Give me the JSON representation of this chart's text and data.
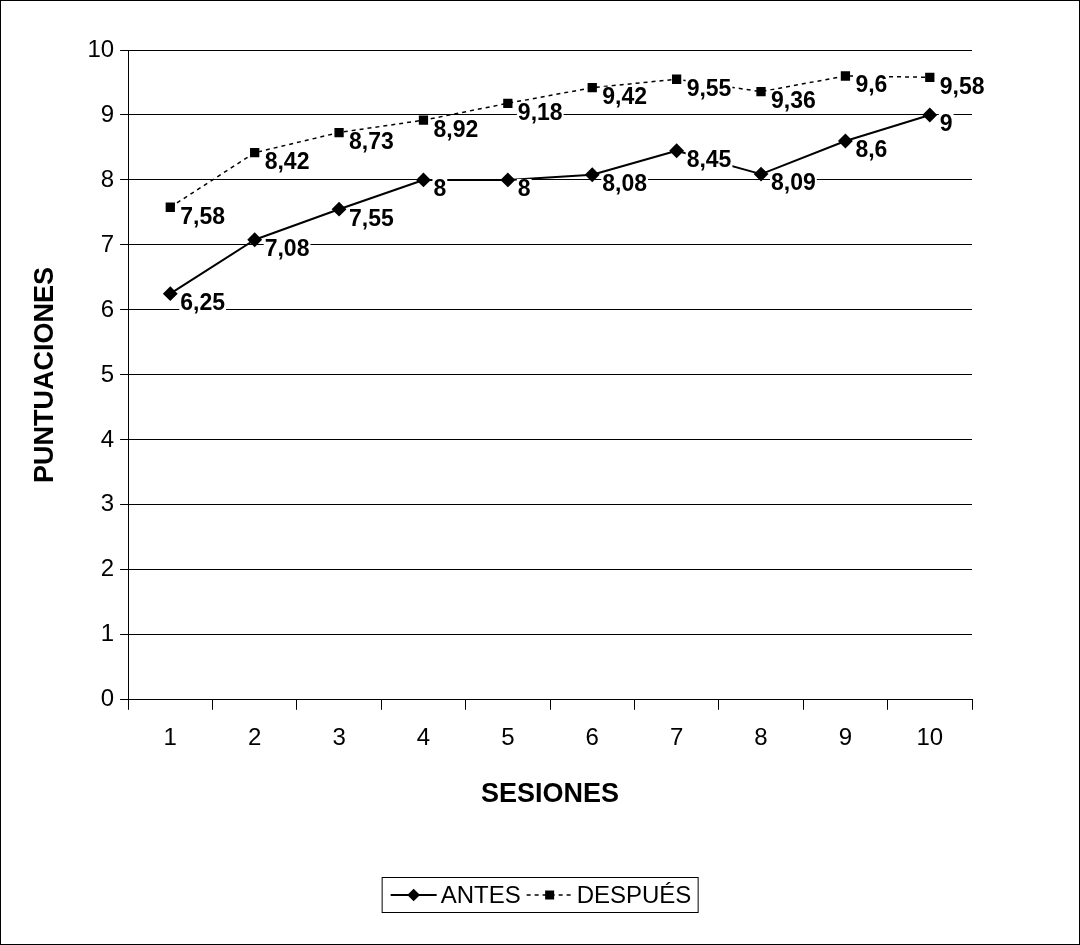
{
  "chart_data": {
    "type": "line",
    "xlabel": "SESIONES",
    "ylabel": "PUNTUACIONES",
    "categories": [
      "1",
      "2",
      "3",
      "4",
      "5",
      "6",
      "7",
      "8",
      "9",
      "10"
    ],
    "ylim": [
      0,
      10
    ],
    "yticks": [
      0,
      1,
      2,
      3,
      4,
      5,
      6,
      7,
      8,
      9,
      10
    ],
    "grid": "y",
    "legend": "bottom",
    "series": [
      {
        "name": "ANTES",
        "color": "#000000",
        "marker": "diamond",
        "line_style": "solid",
        "values": [
          6.25,
          7.08,
          7.55,
          8,
          8,
          8.08,
          8.45,
          8.09,
          8.6,
          9
        ],
        "value_labels": [
          "6,25",
          "7,08",
          "7,55",
          "8",
          "8",
          "8,08",
          "8,45",
          "8,09",
          "8,6",
          "9"
        ]
      },
      {
        "name": "DESPUÉS",
        "color": "#000000",
        "marker": "square",
        "line_style": "dashed",
        "values": [
          7.58,
          8.42,
          8.73,
          8.92,
          9.18,
          9.42,
          9.55,
          9.36,
          9.6,
          9.58
        ],
        "value_labels": [
          "7,58",
          "8,42",
          "8,73",
          "8,92",
          "9,18",
          "9,42",
          "9,55",
          "9,36",
          "9,6",
          "9,58"
        ]
      }
    ]
  }
}
